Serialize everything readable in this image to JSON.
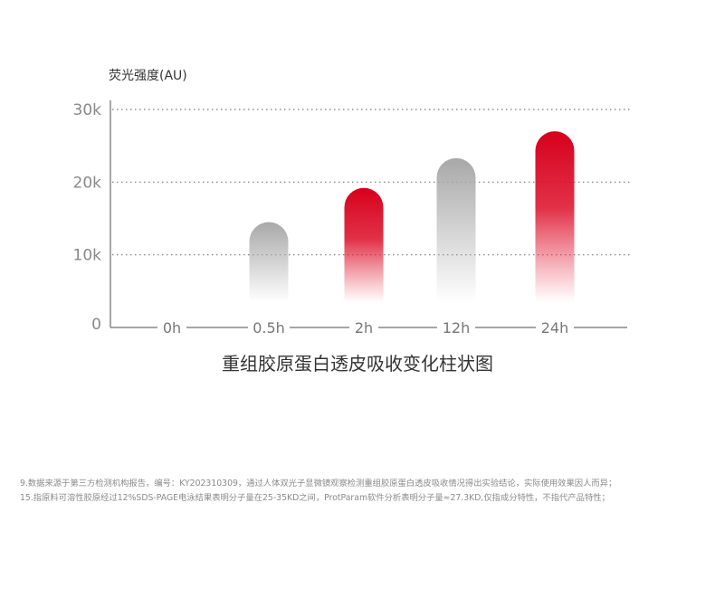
{
  "chart_data": {
    "type": "bar",
    "ylabel": "荧光强度(AU)",
    "title": "重组胶原蛋白透皮吸收变化柱状图",
    "categories": [
      "0h",
      "0.5h",
      "2h",
      "12h",
      "24h"
    ],
    "values": [
      0,
      14500,
      19200,
      23300,
      27000
    ],
    "yticks": [
      {
        "value": 0,
        "label": "0"
      },
      {
        "value": 10000,
        "label": "10k"
      },
      {
        "value": 20000,
        "label": "20k"
      },
      {
        "value": 30000,
        "label": "30k"
      }
    ],
    "ylim": [
      0,
      30000
    ],
    "grid": true,
    "bar_colors": [
      "#a8a8a8",
      "#a8a8a8",
      "#d6001c",
      "#a8a8a8",
      "#d6001c"
    ]
  },
  "footnotes": [
    "9.数据来源于第三方检测机构报告，编号：KY202310309，通过人体双光子显微镜观察检测重组胶原蛋白透皮吸收情况得出实验结论，实际使用效果因人而异；",
    "15.指原料可溶性胶原经过12%SDS-PAGE电泳结果表明分子量在25-35KD之间，ProtParam软件分析表明分子量≈27.3KD,仅指成分特性，不指代产品特性；"
  ]
}
